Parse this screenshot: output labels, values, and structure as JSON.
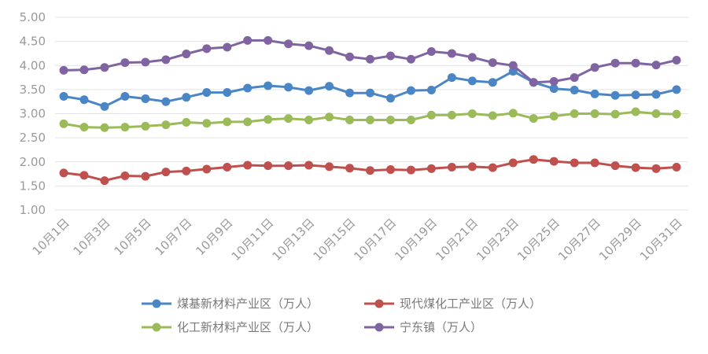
{
  "chart_data": {
    "type": "line",
    "title": "",
    "xlabel": "",
    "ylabel": "",
    "ylim": [
      1.0,
      5.0
    ],
    "yticks": [
      "5.00",
      "4.50",
      "4.00",
      "3.50",
      "3.00",
      "2.50",
      "2.00",
      "1.50",
      "1.00"
    ],
    "grid": true,
    "legend_position": "bottom",
    "x": [
      "10月1日",
      "10月2日",
      "10月3日",
      "10月4日",
      "10月5日",
      "10月6日",
      "10月7日",
      "10月8日",
      "10月9日",
      "10月10日",
      "10月11日",
      "10月12日",
      "10月13日",
      "10月14日",
      "10月15日",
      "10月16日",
      "10月17日",
      "10月18日",
      "10月19日",
      "10月20日",
      "10月21日",
      "10月22日",
      "10月23日",
      "10月24日",
      "10月25日",
      "10月26日",
      "10月27日",
      "10月28日",
      "10月29日",
      "10月30日",
      "10月31日"
    ],
    "x_tick_labels": [
      "10月1日",
      "10月3日",
      "10月5日",
      "10月7日",
      "10月9日",
      "10月11日",
      "10月13日",
      "10月15日",
      "10月17日",
      "10月19日",
      "10月21日",
      "10月23日",
      "10月25日",
      "10月27日",
      "10月29日",
      "10月31日"
    ],
    "series": [
      {
        "name": "煤基新材料产业区（万人）",
        "color": "#4a86c5",
        "values": [
          3.36,
          3.29,
          3.15,
          3.36,
          3.31,
          3.25,
          3.34,
          3.44,
          3.44,
          3.53,
          3.58,
          3.55,
          3.48,
          3.57,
          3.43,
          3.43,
          3.32,
          3.48,
          3.49,
          3.75,
          3.68,
          3.65,
          3.88,
          3.65,
          3.52,
          3.49,
          3.41,
          3.38,
          3.39,
          3.4,
          3.5
        ]
      },
      {
        "name": "现代煤化工产业区（万人）",
        "color": "#c0504d",
        "values": [
          1.77,
          1.72,
          1.61,
          1.71,
          1.7,
          1.79,
          1.81,
          1.85,
          1.89,
          1.93,
          1.92,
          1.92,
          1.93,
          1.9,
          1.87,
          1.82,
          1.84,
          1.83,
          1.86,
          1.89,
          1.9,
          1.88,
          1.98,
          2.05,
          2.01,
          1.98,
          1.98,
          1.92,
          1.88,
          1.86,
          1.89
        ]
      },
      {
        "name": "化工新材料产业区（万人）",
        "color": "#9bbb59",
        "values": [
          2.79,
          2.72,
          2.71,
          2.72,
          2.74,
          2.77,
          2.82,
          2.8,
          2.83,
          2.83,
          2.88,
          2.9,
          2.87,
          2.93,
          2.87,
          2.87,
          2.87,
          2.87,
          2.97,
          2.97,
          3.0,
          2.96,
          3.01,
          2.9,
          2.95,
          3.0,
          3.0,
          2.99,
          3.04,
          3.0,
          2.99
        ]
      },
      {
        "name": "宁东镇（万人）",
        "color": "#8064a2",
        "values": [
          3.9,
          3.91,
          3.96,
          4.06,
          4.07,
          4.12,
          4.24,
          4.35,
          4.38,
          4.52,
          4.52,
          4.45,
          4.41,
          4.31,
          4.18,
          4.13,
          4.2,
          4.13,
          4.29,
          4.25,
          4.17,
          4.06,
          4.0,
          3.65,
          3.67,
          3.75,
          3.96,
          4.05,
          4.05,
          4.01,
          4.11
        ]
      }
    ]
  }
}
